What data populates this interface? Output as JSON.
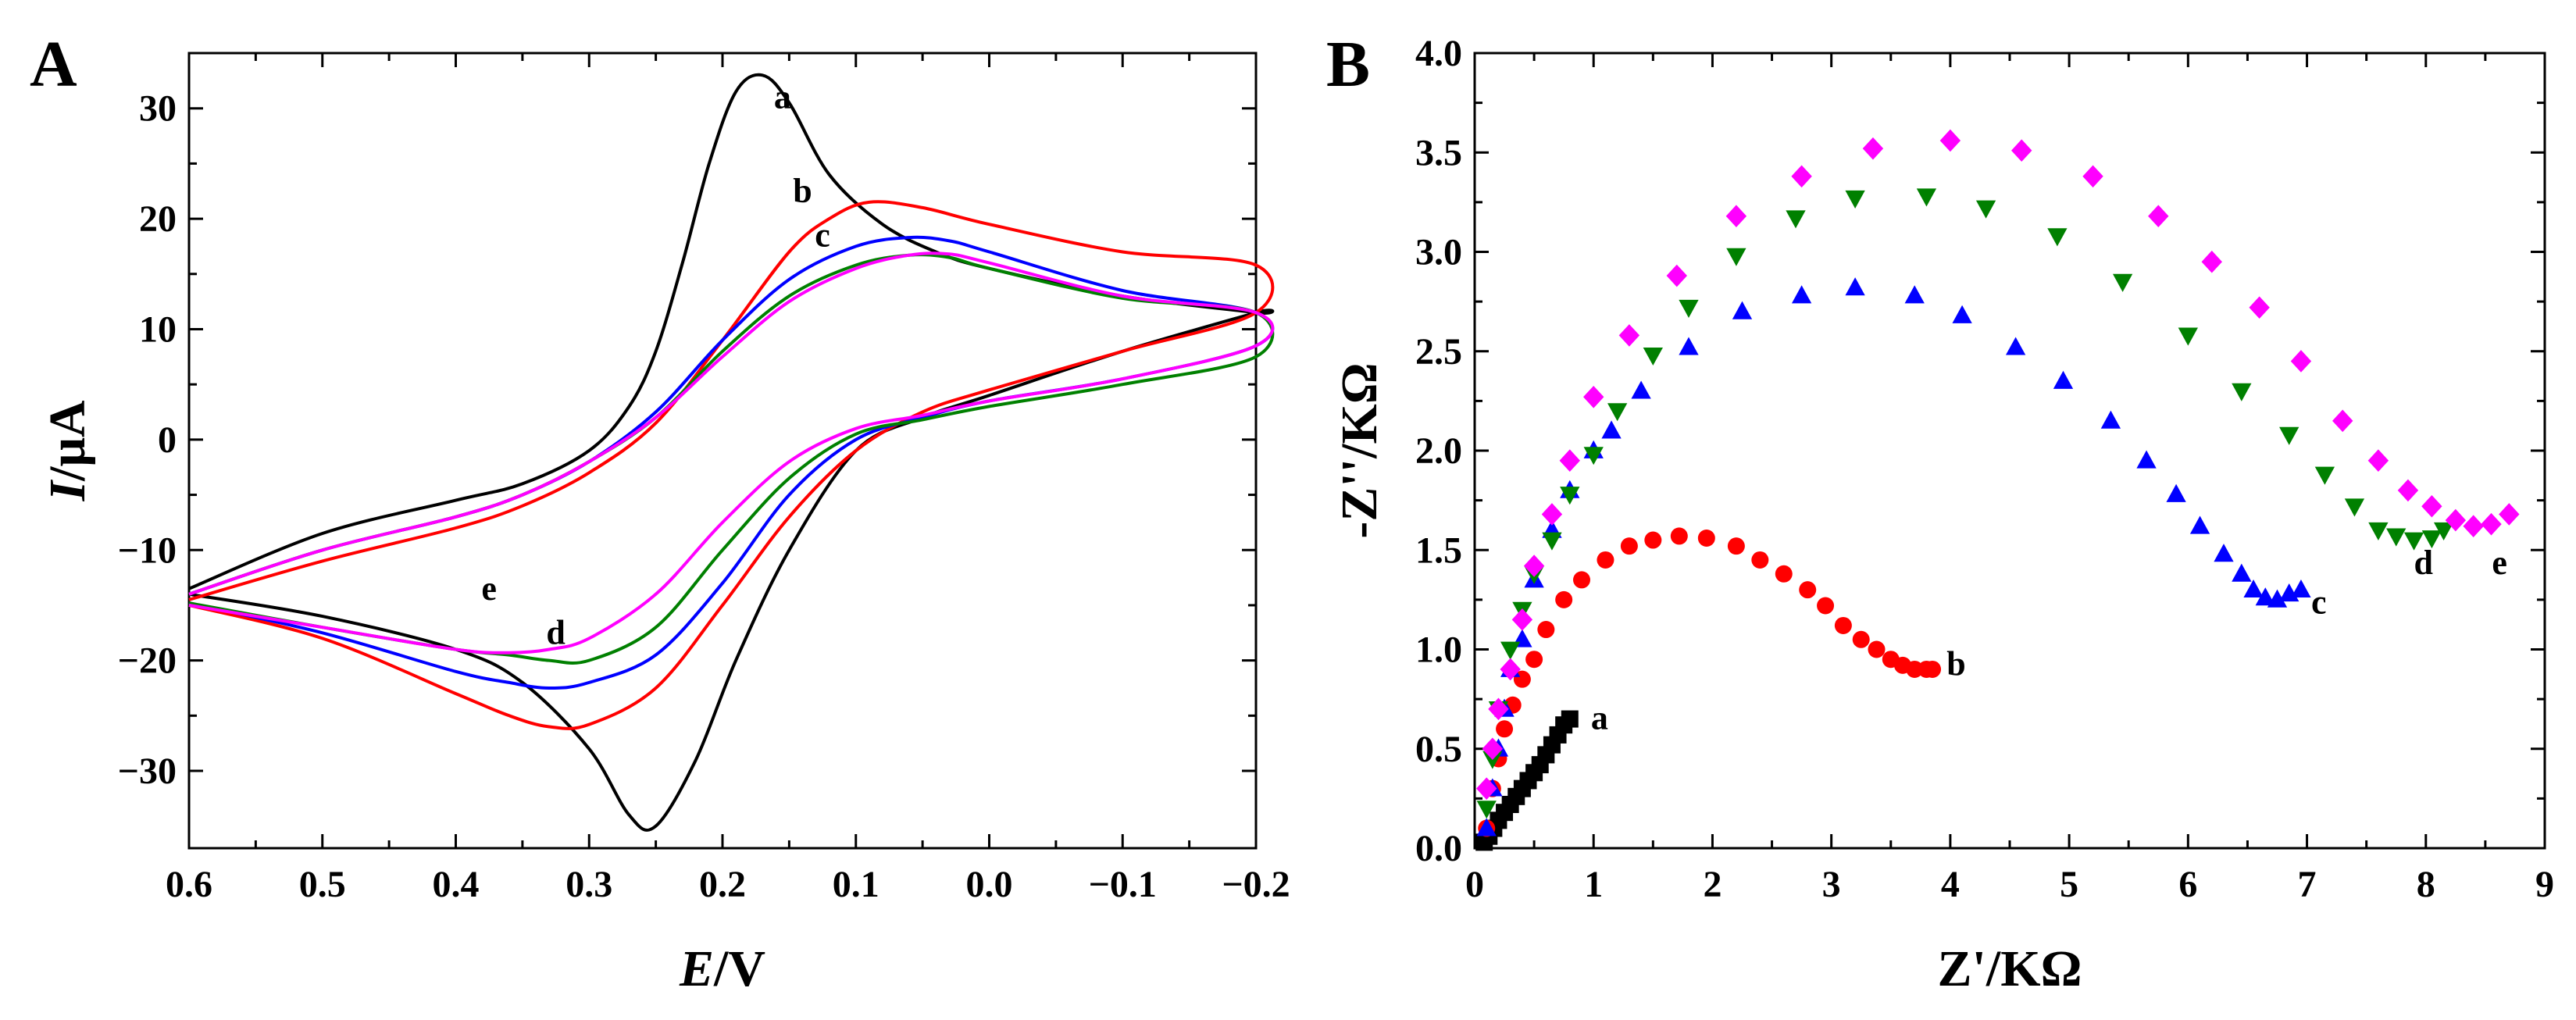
{
  "figure": {
    "panels": [
      "A",
      "B"
    ]
  },
  "chart_data": [
    {
      "panel": "A",
      "type": "line",
      "xlabel_var": "E",
      "xlabel_unit": "/V",
      "ylabel_var": "I",
      "ylabel_unit": "/μA",
      "xlim": [
        0.6,
        -0.2
      ],
      "ylim": [
        -37,
        35
      ],
      "x_reversed": true,
      "grid": false,
      "legend": "none",
      "xticks": [
        0.6,
        0.5,
        0.4,
        0.3,
        0.2,
        0.1,
        0.0,
        -0.1,
        -0.2
      ],
      "xtick_labels": [
        "0.6",
        "0.5",
        "0.4",
        "0.3",
        "0.2",
        "0.1",
        "0.0",
        "−0.1",
        "−0.2"
      ],
      "yticks": [
        30,
        20,
        10,
        0,
        -10,
        -20,
        -30
      ],
      "ytick_labels": [
        "30",
        "20",
        "10",
        "0",
        "−10",
        "−20",
        "−30"
      ],
      "series": [
        {
          "name": "a",
          "color": "#000000",
          "label_at": [
            0.155,
            30
          ],
          "x": [
            0.6,
            0.5,
            0.4,
            0.35,
            0.3,
            0.27,
            0.25,
            0.23,
            0.21,
            0.19,
            0.17,
            0.15,
            0.12,
            0.08,
            0.04,
            0.0,
            -0.1,
            -0.2,
            -0.2,
            -0.1,
            0.0,
            0.05,
            0.1,
            0.15,
            0.19,
            0.22,
            0.25,
            0.27,
            0.3,
            0.35,
            0.4,
            0.5,
            0.6
          ],
          "y": [
            -13.5,
            -8.5,
            -5.5,
            -4.0,
            -1.0,
            3.0,
            8.0,
            16.0,
            25.0,
            31.5,
            33.0,
            30.5,
            24.0,
            19.5,
            17.0,
            15.5,
            13.0,
            11.5,
            11.5,
            8.0,
            4.0,
            2.0,
            -1.0,
            -10.0,
            -20.0,
            -29.0,
            -35.0,
            -34.0,
            -28.0,
            -22.0,
            -19.0,
            -16.0,
            -14.0
          ]
        },
        {
          "name": "b",
          "color": "#ff0000",
          "label_at": [
            0.14,
            21.5
          ],
          "x": [
            0.6,
            0.5,
            0.4,
            0.35,
            0.3,
            0.25,
            0.2,
            0.15,
            0.12,
            0.09,
            0.05,
            0.0,
            -0.1,
            -0.2,
            -0.2,
            -0.1,
            0.0,
            0.05,
            0.1,
            0.15,
            0.2,
            0.25,
            0.3,
            0.33,
            0.36,
            0.4,
            0.5,
            0.6
          ],
          "y": [
            -14.5,
            -11.0,
            -8.0,
            -6.0,
            -3.0,
            1.5,
            9.0,
            17.0,
            20.0,
            21.5,
            21.0,
            19.5,
            17.0,
            15.8,
            11.5,
            8.0,
            4.5,
            2.5,
            -1.0,
            -7.0,
            -15.0,
            -22.5,
            -25.8,
            -26.0,
            -25.0,
            -23.0,
            -18.0,
            -15.0
          ]
        },
        {
          "name": "c",
          "color": "#0000ff",
          "label_at": [
            0.125,
            17.5
          ],
          "x": [
            0.6,
            0.5,
            0.4,
            0.35,
            0.3,
            0.25,
            0.2,
            0.15,
            0.1,
            0.06,
            0.03,
            0.0,
            -0.1,
            -0.2,
            -0.2,
            -0.1,
            0.0,
            0.05,
            0.1,
            0.15,
            0.2,
            0.25,
            0.3,
            0.33,
            0.36,
            0.4,
            0.5,
            0.6
          ],
          "y": [
            -14.0,
            -10.0,
            -7.0,
            -5.0,
            -2.0,
            2.5,
            9.0,
            14.5,
            17.5,
            18.3,
            18.0,
            17.0,
            13.5,
            11.5,
            8.5,
            5.5,
            3.5,
            2.0,
            0.0,
            -5.0,
            -13.0,
            -19.5,
            -22.0,
            -22.5,
            -22.0,
            -21.0,
            -17.5,
            -14.8
          ]
        },
        {
          "name": "d",
          "color": "#008000",
          "label_at": [
            0.325,
            -18.5
          ],
          "x": [
            0.6,
            0.5,
            0.4,
            0.35,
            0.3,
            0.25,
            0.2,
            0.15,
            0.1,
            0.06,
            0.03,
            0.0,
            -0.1,
            -0.2,
            -0.2,
            -0.1,
            0.0,
            0.05,
            0.1,
            0.15,
            0.2,
            0.25,
            0.3,
            0.33,
            0.36,
            0.4,
            0.5,
            0.6
          ],
          "y": [
            -14.0,
            -10.0,
            -7.0,
            -5.0,
            -2.0,
            2.0,
            8.0,
            13.0,
            15.8,
            16.7,
            16.5,
            15.5,
            12.8,
            11.5,
            7.5,
            5.0,
            3.0,
            1.8,
            0.5,
            -3.5,
            -10.0,
            -17.0,
            -20.0,
            -20.0,
            -19.5,
            -19.0,
            -17.0,
            -14.8
          ]
        },
        {
          "name": "e",
          "color": "#ff00ff",
          "label_at": [
            0.375,
            -14.5
          ],
          "x": [
            0.6,
            0.5,
            0.4,
            0.35,
            0.3,
            0.25,
            0.2,
            0.15,
            0.1,
            0.06,
            0.03,
            0.0,
            -0.1,
            -0.2,
            -0.2,
            -0.1,
            0.0,
            0.05,
            0.1,
            0.15,
            0.2,
            0.25,
            0.3,
            0.33,
            0.36,
            0.4,
            0.5,
            0.6
          ],
          "y": [
            -14.0,
            -10.0,
            -7.0,
            -5.0,
            -2.0,
            2.0,
            7.5,
            12.5,
            15.5,
            16.7,
            16.8,
            16.0,
            13.0,
            11.5,
            8.5,
            5.5,
            3.5,
            2.2,
            1.0,
            -2.0,
            -7.5,
            -14.0,
            -18.0,
            -19.0,
            -19.3,
            -19.0,
            -17.0,
            -15.0
          ]
        }
      ]
    },
    {
      "panel": "B",
      "type": "scatter",
      "xlabel": "Z'/KΩ",
      "ylabel": "-Z''/KΩ",
      "xlim": [
        0,
        9
      ],
      "ylim": [
        0,
        4.0
      ],
      "grid": false,
      "legend": "none",
      "xticks": [
        0,
        1,
        2,
        3,
        4,
        5,
        6,
        7,
        8,
        9
      ],
      "xtick_labels": [
        "0",
        "1",
        "2",
        "3",
        "4",
        "5",
        "6",
        "7",
        "8",
        "9"
      ],
      "yticks": [
        0.0,
        0.5,
        1.0,
        1.5,
        2.0,
        2.5,
        3.0,
        3.5,
        4.0
      ],
      "ytick_labels": [
        "0.0",
        "0.5",
        "1.0",
        "1.5",
        "2.0",
        "2.5",
        "3.0",
        "3.5",
        "4.0"
      ],
      "series": [
        {
          "name": "a",
          "color": "#000000",
          "marker": "square",
          "label_at": [
            1.05,
            0.6
          ],
          "x": [
            0.08,
            0.12,
            0.16,
            0.2,
            0.25,
            0.3,
            0.35,
            0.4,
            0.45,
            0.5,
            0.55,
            0.6,
            0.65,
            0.7,
            0.75,
            0.8
          ],
          "y": [
            0.03,
            0.06,
            0.1,
            0.14,
            0.18,
            0.22,
            0.26,
            0.3,
            0.34,
            0.38,
            0.42,
            0.47,
            0.52,
            0.57,
            0.62,
            0.65
          ]
        },
        {
          "name": "b",
          "color": "#ff0000",
          "marker": "circle",
          "label_at": [
            4.05,
            0.87
          ],
          "x": [
            0.1,
            0.15,
            0.2,
            0.25,
            0.32,
            0.4,
            0.5,
            0.6,
            0.75,
            0.9,
            1.1,
            1.3,
            1.5,
            1.72,
            1.95,
            2.2,
            2.4,
            2.6,
            2.8,
            2.95,
            3.1,
            3.25,
            3.38,
            3.5,
            3.6,
            3.7,
            3.8,
            3.85
          ],
          "y": [
            0.1,
            0.3,
            0.45,
            0.6,
            0.72,
            0.85,
            0.95,
            1.1,
            1.25,
            1.35,
            1.45,
            1.52,
            1.55,
            1.57,
            1.56,
            1.52,
            1.45,
            1.38,
            1.3,
            1.22,
            1.12,
            1.05,
            1.0,
            0.95,
            0.92,
            0.9,
            0.9,
            0.9
          ]
        },
        {
          "name": "c",
          "color": "#0000ff",
          "marker": "triangle-up",
          "label_at": [
            7.1,
            1.18
          ],
          "x": [
            0.1,
            0.15,
            0.2,
            0.25,
            0.3,
            0.4,
            0.5,
            0.65,
            0.8,
            1.0,
            1.15,
            1.4,
            1.8,
            2.25,
            2.75,
            3.2,
            3.7,
            4.1,
            4.55,
            4.95,
            5.35,
            5.65,
            5.9,
            6.1,
            6.3,
            6.45,
            6.55,
            6.65,
            6.75,
            6.85,
            6.95
          ],
          "y": [
            0.1,
            0.3,
            0.5,
            0.7,
            0.9,
            1.05,
            1.35,
            1.6,
            1.8,
            2.0,
            2.1,
            2.3,
            2.52,
            2.7,
            2.78,
            2.82,
            2.78,
            2.68,
            2.52,
            2.35,
            2.15,
            1.95,
            1.78,
            1.62,
            1.48,
            1.38,
            1.3,
            1.26,
            1.25,
            1.28,
            1.3
          ]
        },
        {
          "name": "d",
          "color": "#008000",
          "marker": "triangle-down",
          "label_at": [
            7.98,
            1.38
          ],
          "x": [
            0.1,
            0.15,
            0.2,
            0.3,
            0.4,
            0.5,
            0.65,
            0.8,
            1.0,
            1.2,
            1.5,
            1.8,
            2.2,
            2.7,
            3.2,
            3.8,
            4.3,
            4.9,
            5.45,
            6.0,
            6.45,
            6.85,
            7.15,
            7.4,
            7.6,
            7.75,
            7.9,
            8.05,
            8.15
          ],
          "y": [
            0.2,
            0.45,
            0.7,
            1.0,
            1.2,
            1.38,
            1.55,
            1.78,
            1.98,
            2.2,
            2.48,
            2.72,
            2.98,
            3.17,
            3.27,
            3.28,
            3.22,
            3.08,
            2.85,
            2.58,
            2.3,
            2.08,
            1.88,
            1.72,
            1.6,
            1.57,
            1.55,
            1.56,
            1.6
          ]
        },
        {
          "name": "e",
          "color": "#ff00ff",
          "marker": "diamond",
          "label_at": [
            8.62,
            1.38
          ],
          "x": [
            0.1,
            0.15,
            0.2,
            0.3,
            0.4,
            0.5,
            0.65,
            0.8,
            1.0,
            1.3,
            1.7,
            2.2,
            2.75,
            3.35,
            4.0,
            4.6,
            5.2,
            5.75,
            6.2,
            6.6,
            6.95,
            7.3,
            7.6,
            7.85,
            8.05,
            8.25,
            8.4,
            8.55,
            8.7
          ],
          "y": [
            0.3,
            0.5,
            0.7,
            0.9,
            1.15,
            1.42,
            1.68,
            1.95,
            2.27,
            2.58,
            2.88,
            3.18,
            3.38,
            3.52,
            3.56,
            3.51,
            3.38,
            3.18,
            2.95,
            2.72,
            2.45,
            2.15,
            1.95,
            1.8,
            1.72,
            1.65,
            1.62,
            1.63,
            1.68
          ]
        }
      ]
    }
  ]
}
